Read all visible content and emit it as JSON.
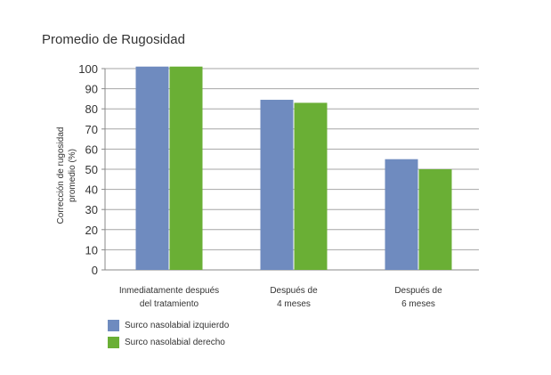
{
  "chart_data": {
    "type": "bar",
    "title": "Promedio de Rugosidad",
    "ylabel_lines": [
      "Corrección de rugosidad",
      "promedio (%)"
    ],
    "xlabel": "",
    "categories": [
      [
        "Inmediatamente después",
        "del tratamiento"
      ],
      [
        "Después de",
        "4 meses"
      ],
      [
        "Después de",
        "6 meses"
      ]
    ],
    "series": [
      {
        "name": "Surco nasolabial izquierdo",
        "color": "#6f8bbf",
        "values": [
          101,
          84.5,
          55
        ]
      },
      {
        "name": "Surco nasolabial derecho",
        "color": "#6aaf35",
        "values": [
          101,
          83,
          50
        ]
      }
    ],
    "ylim": [
      0,
      100
    ],
    "yticks": [
      0,
      10,
      20,
      30,
      40,
      50,
      60,
      70,
      80,
      90,
      100
    ],
    "grid": true,
    "legend_position": "bottom-left"
  }
}
